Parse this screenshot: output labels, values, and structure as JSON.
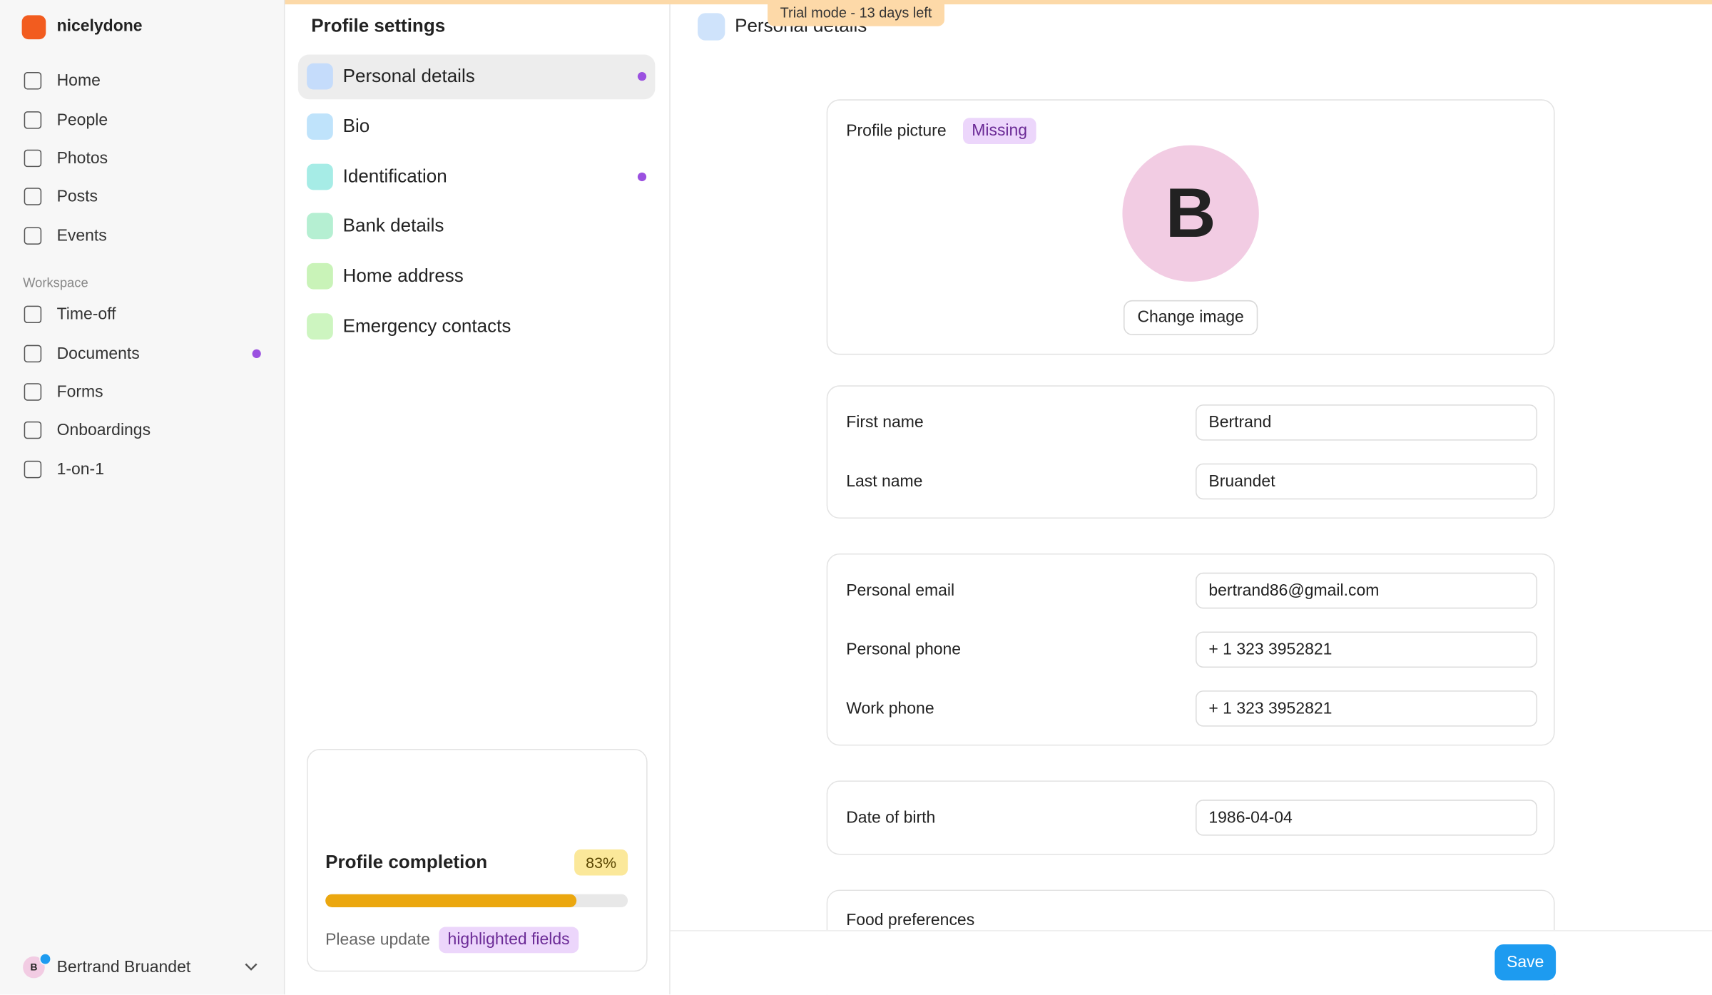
{
  "sidebar": {
    "brand": "nicelydone",
    "nav": [
      "Home",
      "People",
      "Photos",
      "Posts",
      "Events"
    ],
    "workspace_label": "Workspace",
    "workspace": [
      "Time-off",
      "Documents",
      "Forms",
      "Onboardings",
      "1-on-1"
    ],
    "user": {
      "initial": "B",
      "name": "Bertrand Bruandet"
    }
  },
  "settings": {
    "title": "Profile settings",
    "sections": [
      "Personal details",
      "Bio",
      "Identification",
      "Bank details",
      "Home address",
      "Emergency contacts"
    ]
  },
  "completion": {
    "title": "Profile completion",
    "percent": 83,
    "percent_label": "83%",
    "hint": "Please update",
    "hint_badge": "highlighted fields"
  },
  "banner": "Trial mode - 13 days left",
  "header": {
    "title": "Personal details"
  },
  "picture": {
    "label": "Profile picture",
    "status": "Missing",
    "initial": "B",
    "button": "Change image"
  },
  "fields": [
    {
      "label": "First name",
      "value": "Bertrand"
    },
    {
      "label": "Last name",
      "value": "Bruandet"
    },
    {
      "label": "Personal email",
      "value": "bertrand86@gmail.com"
    },
    {
      "label": "Personal phone",
      "value": "+ 1 323 3952821"
    },
    {
      "label": "Work phone",
      "value": "+ 1 323 3952821"
    },
    {
      "label": "Date of birth",
      "value": "1986-04-04"
    }
  ],
  "food_label": "Food preferences",
  "save": "Save"
}
